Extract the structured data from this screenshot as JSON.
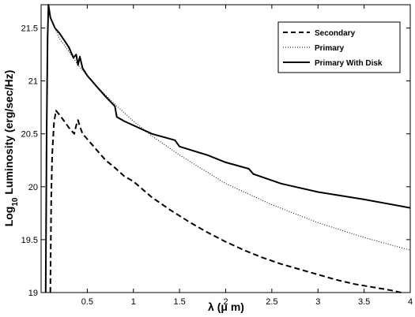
{
  "chart_data": {
    "type": "line",
    "title": "",
    "xlabel": "λ (μ m)",
    "ylabel": {
      "prefix": "Log",
      "subscript": "10",
      "rest": " Luminosity (erg/sec/Hz)"
    },
    "xlim": [
      0,
      4
    ],
    "ylim": [
      19,
      21.72
    ],
    "xticks": [
      0.5,
      1,
      1.5,
      2,
      2.5,
      3,
      3.5,
      4
    ],
    "xtick_labels": [
      "0.5",
      "1",
      "1.5",
      "2",
      "2.5",
      "3",
      "3.5",
      "4"
    ],
    "yticks": [
      19,
      19.5,
      20,
      20.5,
      21,
      21.5
    ],
    "ytick_labels": [
      "19",
      "19.5",
      "20",
      "20.5",
      "21",
      "21.5"
    ],
    "grid": false,
    "legend_position": "top-right",
    "series": [
      {
        "name": "Secondary",
        "style": "dashed",
        "color": "#000000",
        "x": [
          0.1,
          0.11,
          0.12,
          0.14,
          0.16,
          0.2,
          0.25,
          0.3,
          0.33,
          0.36,
          0.38,
          0.4,
          0.42,
          0.45,
          0.5,
          0.6,
          0.7,
          0.8,
          0.9,
          1.0,
          1.2,
          1.4,
          1.6,
          1.8,
          2.0,
          2.2,
          2.4,
          2.6,
          2.8,
          3.0,
          3.2,
          3.4,
          3.6,
          3.8,
          3.9
        ],
        "y": [
          19.0,
          19.9,
          20.3,
          20.6,
          20.72,
          20.68,
          20.62,
          20.56,
          20.53,
          20.5,
          20.58,
          20.63,
          20.57,
          20.5,
          20.45,
          20.35,
          20.25,
          20.18,
          20.1,
          20.05,
          19.9,
          19.78,
          19.67,
          19.57,
          19.48,
          19.4,
          19.33,
          19.27,
          19.22,
          19.17,
          19.12,
          19.08,
          19.05,
          19.02,
          19.0
        ]
      },
      {
        "name": "Primary",
        "style": "dotted",
        "color": "#000000",
        "x": [
          0.05,
          0.06,
          0.07,
          0.08,
          0.1,
          0.15,
          0.2,
          0.3,
          0.4,
          0.5,
          0.6,
          0.8,
          1.0,
          1.2,
          1.5,
          2.0,
          2.5,
          3.0,
          3.5,
          4.0
        ],
        "y": [
          19.0,
          20.5,
          21.4,
          21.72,
          21.6,
          21.5,
          21.4,
          21.28,
          21.15,
          21.05,
          20.95,
          20.78,
          20.62,
          20.48,
          20.3,
          20.03,
          19.83,
          19.66,
          19.52,
          19.4
        ]
      },
      {
        "name": "Primary With Disk",
        "style": "solid",
        "color": "#000000",
        "x": [
          0.05,
          0.06,
          0.07,
          0.08,
          0.1,
          0.15,
          0.2,
          0.3,
          0.35,
          0.38,
          0.4,
          0.42,
          0.45,
          0.5,
          0.6,
          0.7,
          0.8,
          0.82,
          0.9,
          1.0,
          1.2,
          1.45,
          1.5,
          1.8,
          2.0,
          2.25,
          2.3,
          2.6,
          3.0,
          3.5,
          4.0
        ],
        "y": [
          19.0,
          20.5,
          21.4,
          21.72,
          21.6,
          21.5,
          21.45,
          21.32,
          21.22,
          21.25,
          21.15,
          21.23,
          21.12,
          21.05,
          20.95,
          20.85,
          20.76,
          20.66,
          20.62,
          20.58,
          20.5,
          20.44,
          20.38,
          20.3,
          20.23,
          20.17,
          20.12,
          20.03,
          19.95,
          19.88,
          19.8
        ]
      }
    ]
  }
}
